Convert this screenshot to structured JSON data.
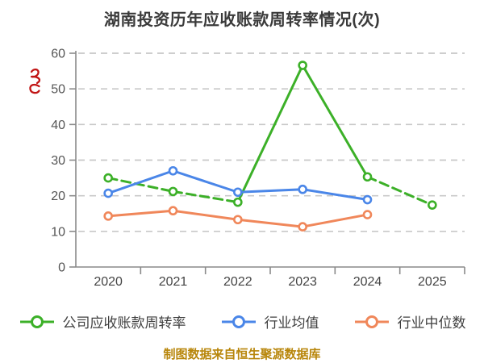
{
  "title": "湖南投资历年应收账款周转率情况(次)",
  "footer": "制图数据来自恒生聚源数据库",
  "colors": {
    "company": "#3cb028",
    "industry_avg": "#4a86e8",
    "industry_median": "#f0875a",
    "grid": "#c8c8c8",
    "axis": "#8a8a8a",
    "y_tick_label": "#555555",
    "x_tick_label": "#444444",
    "title_text": "#3a3a3a",
    "footer_text": "#b8860b",
    "annotation_mark": "#c11414",
    "marker_fill": "#ffffff"
  },
  "legend": [
    {
      "label": "公司应收账款周转率"
    },
    {
      "label": "行业均值"
    },
    {
      "label": "行业中位数"
    }
  ],
  "chart_data": {
    "type": "line",
    "title": "湖南投资历年应收账款周转率情况(次)",
    "x": [
      "2020",
      "2021",
      "2022",
      "2023",
      "2024",
      "2025"
    ],
    "series": [
      {
        "name": "公司应收账款周转率",
        "color": "#3cb028",
        "values": [
          25.0,
          21.2,
          18.2,
          56.6,
          25.3,
          17.4
        ],
        "dashed_segments": [
          0,
          1,
          4
        ],
        "style": "line+marker"
      },
      {
        "name": "行业均值",
        "color": "#4a86e8",
        "values": [
          20.7,
          27.0,
          21.0,
          21.8,
          18.9,
          null
        ],
        "dashed_segments": [],
        "style": "line+marker"
      },
      {
        "name": "行业中位数",
        "color": "#f0875a",
        "values": [
          14.3,
          15.8,
          13.3,
          11.3,
          14.7,
          null
        ],
        "dashed_segments": [],
        "style": "line+marker"
      }
    ],
    "ylim": [
      0,
      60
    ],
    "ytick_step": 10,
    "yticks": [
      0,
      10,
      20,
      30,
      40,
      50,
      60
    ],
    "grid": "horizontal-dashed",
    "legend_position": "bottom",
    "source_note": "制图数据来自恒生聚源数据库"
  }
}
